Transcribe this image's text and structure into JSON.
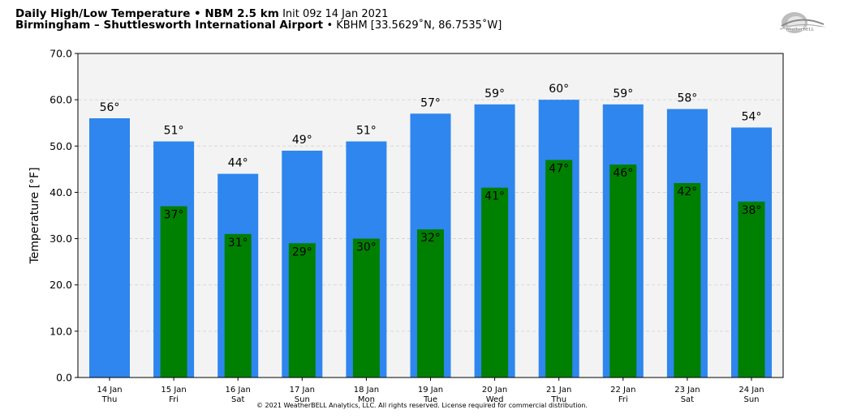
{
  "header": {
    "title_bold": "Daily High/Low Temperature • NBM 2.5 km",
    "init": "Init 09z 14 Jan 2021",
    "location_bold": "Birmingham – Shuttlesworth International Airport",
    "station": "• KBHM [33.5629˚N, 86.7535˚W]"
  },
  "logo": {
    "text": "WeatherBELL",
    "icon": "weatherbell-logo-icon"
  },
  "footer": {
    "copyright": "© 2021 WeatherBELL Analytics, LLC. All rights reserved. License required for commercial distribution."
  },
  "colors": {
    "high": "#2e86ee",
    "low": "#008000",
    "plot_bg": "#f3f3f3",
    "grid": "#d0d0d0"
  },
  "chart_data": {
    "type": "bar",
    "ylabel": "Temperature [°F]",
    "xlabel": "",
    "ylim": [
      0,
      70
    ],
    "yticks": [
      "0.0",
      "10.0",
      "20.0",
      "30.0",
      "40.0",
      "50.0",
      "60.0",
      "70.0"
    ],
    "grid": true,
    "categories": [
      "14 Jan",
      "15 Jan",
      "16 Jan",
      "17 Jan",
      "18 Jan",
      "19 Jan",
      "20 Jan",
      "21 Jan",
      "22 Jan",
      "23 Jan",
      "24 Jan"
    ],
    "days": [
      "Thu",
      "Fri",
      "Sat",
      "Sun",
      "Mon",
      "Tue",
      "Wed",
      "Thu",
      "Fri",
      "Sat",
      "Sun"
    ],
    "series": [
      {
        "values": [
          56,
          51,
          44,
          49,
          51,
          57,
          59,
          60,
          59,
          58,
          54
        ],
        "labels": [
          "56°",
          "51°",
          "44°",
          "49°",
          "51°",
          "57°",
          "59°",
          "60°",
          "59°",
          "58°",
          "54°"
        ]
      },
      {
        "values": [
          null,
          37,
          31,
          29,
          30,
          32,
          41,
          47,
          46,
          42,
          38
        ],
        "labels": [
          "",
          "37°",
          "31°",
          "29°",
          "30°",
          "32°",
          "41°",
          "47°",
          "46°",
          "42°",
          "38°"
        ]
      }
    ]
  }
}
